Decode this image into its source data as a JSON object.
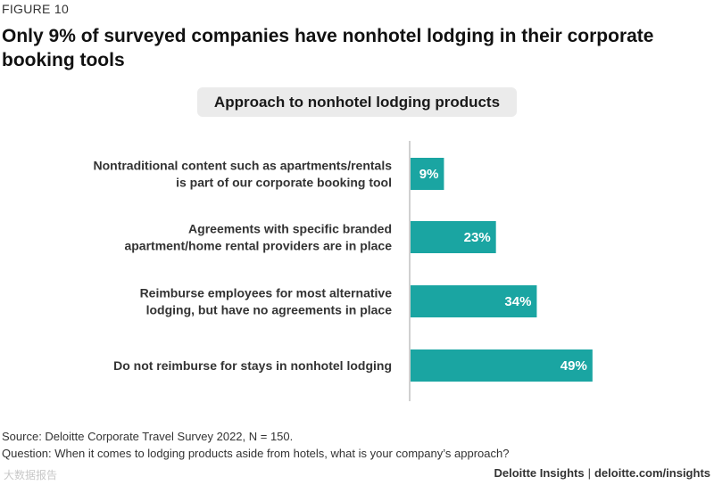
{
  "figure_label": "FIGURE 10",
  "title": "Only 9% of surveyed companies have nonhotel lodging in their corporate booking tools",
  "chart_data": {
    "type": "bar",
    "orientation": "horizontal",
    "title": "Approach to nonhotel lodging products",
    "categories": [
      [
        "Nontraditional content such as apartments/rentals",
        "is part of our corporate booking tool"
      ],
      [
        "Agreements with specific branded",
        "apartment/home rental providers are in place"
      ],
      [
        "Reimburse employees for most alternative",
        "lodging, but have no agreements in place"
      ],
      [
        "Do not reimburse for stays in nonhotel lodging"
      ]
    ],
    "values": [
      9,
      23,
      34,
      49
    ],
    "value_labels": [
      "9%",
      "23%",
      "34%",
      "49%"
    ],
    "xlim": [
      0,
      100
    ],
    "bar_color": "#1aa5a2",
    "axis_color": "#d0d0d0",
    "grid": false
  },
  "footer": {
    "source": "Source: Deloitte Corporate Travel Survey 2022, N = 150.",
    "question": "Question: When it comes to lodging products aside from hotels, what is your company’s approach?",
    "brand": "Deloitte Insights",
    "brand_separator": "|",
    "brand_url": "deloitte.com/insights"
  },
  "watermark": "大数据报告"
}
